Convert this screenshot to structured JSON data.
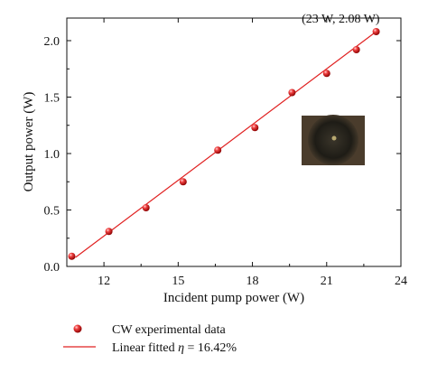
{
  "chart_data": {
    "type": "scatter",
    "xlabel": "Incident pump power (W)",
    "ylabel": "Output power (W)",
    "xlim": [
      10.5,
      24
    ],
    "ylim": [
      0,
      2.2
    ],
    "x_ticks": [
      12,
      15,
      18,
      21,
      24
    ],
    "y_ticks": [
      0.0,
      0.5,
      1.0,
      1.5,
      2.0
    ],
    "x_tick_labels": [
      "12",
      "15",
      "18",
      "21",
      "24"
    ],
    "y_tick_labels": [
      "0.0",
      "0.5",
      "1.0",
      "1.5",
      "2.0"
    ],
    "grid": false,
    "series": [
      {
        "name": "CW experimental data",
        "kind": "scatter",
        "marker": "sphere",
        "color": "#e02020",
        "x": [
          10.7,
          12.2,
          13.7,
          15.2,
          16.6,
          18.1,
          19.6,
          21.0,
          22.2,
          23.0
        ],
        "y": [
          0.09,
          0.31,
          0.52,
          0.75,
          1.03,
          1.23,
          1.54,
          1.71,
          1.92,
          2.08
        ]
      },
      {
        "name": "Linear fitted η = 16.42%",
        "name_prefix": "Linear fitted ",
        "name_symbol": "η",
        "name_suffix": " = 16.42%",
        "kind": "line",
        "color": "#e02020",
        "x": [
          10.85,
          23.0
        ],
        "y": [
          0.08,
          2.08
        ]
      }
    ],
    "annotations": [
      {
        "text": "(23 W, 2.08 W)",
        "x": 23.0,
        "y": 2.08
      }
    ],
    "inset": {
      "description_colors": [
        "#5b4a36",
        "#222018",
        "#a89a6a"
      ]
    },
    "legend_position": "below-plot"
  }
}
